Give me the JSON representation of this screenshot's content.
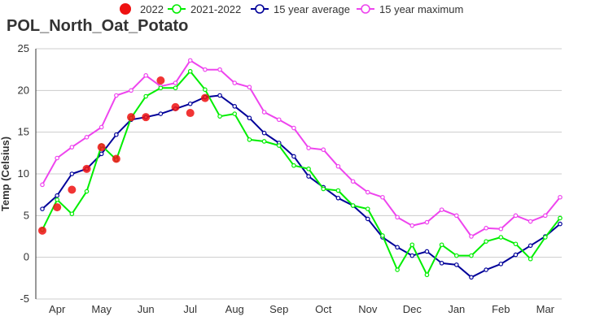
{
  "chart_data": {
    "type": "line",
    "title": "POL_North_Oat_Potato",
    "xlabel": "",
    "ylabel": "Temp (Celsius)",
    "ylim": [
      -5,
      25
    ],
    "yticks": [
      -5,
      0,
      5,
      10,
      15,
      20,
      25
    ],
    "xlim": [
      0,
      35
    ],
    "month_labels": [
      "Apr",
      "May",
      "Jun",
      "Jul",
      "Aug",
      "Sep",
      "Oct",
      "Nov",
      "Dec",
      "Jan",
      "Feb",
      "Mar"
    ],
    "month_positions": [
      1,
      4,
      7,
      10,
      13,
      16,
      19,
      22,
      25,
      28,
      31,
      34
    ],
    "grid": "horizontal",
    "legend_position": "top",
    "legend": [
      {
        "name": "2022",
        "color": "#ee1111",
        "marker": "filled-circle"
      },
      {
        "name": "2021-2022",
        "color": "#00ee00",
        "marker": "hollow-circle"
      },
      {
        "name": "15 year average",
        "color": "#000099",
        "marker": "hollow-circle"
      },
      {
        "name": "15 year maximum",
        "color": "#ee44ee",
        "marker": "hollow-circle"
      }
    ],
    "series": [
      {
        "name": "15 year maximum",
        "color": "#ee44ee",
        "style": "line",
        "x": [
          0,
          1,
          2,
          3,
          4,
          5,
          6,
          7,
          8,
          9,
          10,
          11,
          12,
          13,
          14,
          15,
          16,
          17,
          18,
          19,
          20,
          21,
          22,
          23,
          24,
          25,
          26,
          27,
          28,
          29,
          30,
          31,
          32,
          33,
          34,
          35
        ],
        "values": [
          8.7,
          11.9,
          13.2,
          14.4,
          15.6,
          19.4,
          20.0,
          21.8,
          20.5,
          20.9,
          23.6,
          22.5,
          22.5,
          20.9,
          20.4,
          17.4,
          16.5,
          15.5,
          13.1,
          12.9,
          10.9,
          9.1,
          7.8,
          7.2,
          4.8,
          3.8,
          4.2,
          5.7,
          5.0,
          2.5,
          3.5,
          3.4,
          5.0,
          4.3,
          5.0,
          7.2
        ]
      },
      {
        "name": "15 year average",
        "color": "#000099",
        "style": "line",
        "x": [
          0,
          1,
          2,
          3,
          4,
          5,
          6,
          7,
          8,
          9,
          10,
          11,
          12,
          13,
          14,
          15,
          16,
          17,
          18,
          19,
          20,
          21,
          22,
          23,
          24,
          25,
          26,
          27,
          28,
          29,
          30,
          31,
          32,
          33,
          34,
          35
        ],
        "values": [
          5.8,
          7.4,
          10.0,
          10.6,
          12.4,
          14.7,
          16.5,
          16.8,
          17.2,
          17.8,
          18.4,
          19.2,
          19.4,
          18.1,
          16.7,
          14.9,
          13.7,
          12.1,
          9.7,
          8.4,
          7.1,
          6.2,
          4.6,
          2.4,
          1.2,
          0.2,
          0.7,
          -0.7,
          -0.9,
          -2.4,
          -1.5,
          -0.8,
          0.3,
          1.4,
          2.5,
          4.0
        ]
      },
      {
        "name": "2021-2022",
        "color": "#00ee00",
        "style": "line",
        "x": [
          0,
          1,
          2,
          3,
          4,
          5,
          6,
          7,
          8,
          9,
          10,
          11,
          12,
          13,
          14,
          15,
          16,
          17,
          18,
          19,
          20,
          21,
          22,
          23,
          24,
          25,
          26,
          27,
          28,
          29,
          30,
          31,
          32,
          33,
          34,
          35
        ],
        "values": [
          3.3,
          6.9,
          5.2,
          7.9,
          13.4,
          11.7,
          16.7,
          19.3,
          20.3,
          20.3,
          22.3,
          20.1,
          16.9,
          17.2,
          14.1,
          13.9,
          13.4,
          11.0,
          10.6,
          8.2,
          8.0,
          6.2,
          5.8,
          2.6,
          -1.5,
          1.5,
          -2.1,
          1.5,
          0.2,
          0.2,
          1.9,
          2.4,
          1.6,
          -0.2,
          2.4,
          4.7
        ]
      },
      {
        "name": "2022",
        "color": "#ee1111",
        "style": "scatter",
        "x": [
          0,
          1,
          2,
          3,
          4,
          5,
          6,
          7,
          8,
          9,
          10,
          11
        ],
        "values": [
          3.2,
          6.0,
          8.1,
          10.6,
          13.2,
          11.8,
          16.8,
          16.8,
          21.2,
          18.0,
          17.3,
          19.1
        ]
      }
    ]
  }
}
